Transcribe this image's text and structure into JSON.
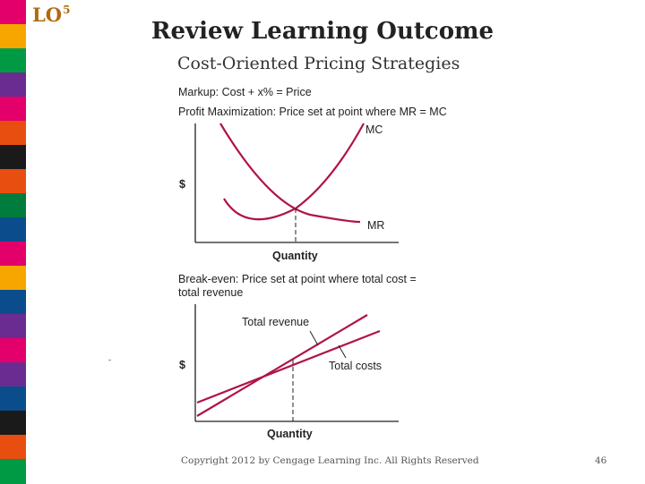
{
  "sidebar": {
    "stripe_colors": [
      "#e3006b",
      "#f7a600",
      "#009a44",
      "#6a2c91",
      "#e3006b",
      "#e84e0f",
      "#1a1a1a",
      "#e84e0f",
      "#007d3c",
      "#0b4d8c",
      "#e3006b",
      "#f7a600",
      "#0b4d8c",
      "#6a2c91",
      "#e3006b",
      "#6a2c91",
      "#0b4d8c",
      "#1a1a1a",
      "#e84e0f",
      "#009a44"
    ]
  },
  "slide": {
    "lo_label": "LO",
    "lo_number": "5",
    "title": "Review Learning Outcome",
    "subtitle": "Cost-Oriented Pricing Strategies",
    "footer": "Copyright 2012 by Cengage Learning Inc. All Rights Reserved",
    "page_number": "46"
  },
  "figure": {
    "markup_text": "Markup: Cost + x% = Price",
    "profit_max_text": "Profit Maximization: Price set at point where MR = MC",
    "mc_label": "MC",
    "mr_label": "MR",
    "y_label_top": "$",
    "x_label_top": "Quantity",
    "breakeven_line1": "Break-even: Price set at point where total cost =",
    "breakeven_line2": "total revenue",
    "total_revenue_label": "Total revenue",
    "total_costs_label": "Total costs",
    "y_label_bottom": "$",
    "x_label_bottom": "Quantity",
    "curve_color": "#b0134a"
  }
}
